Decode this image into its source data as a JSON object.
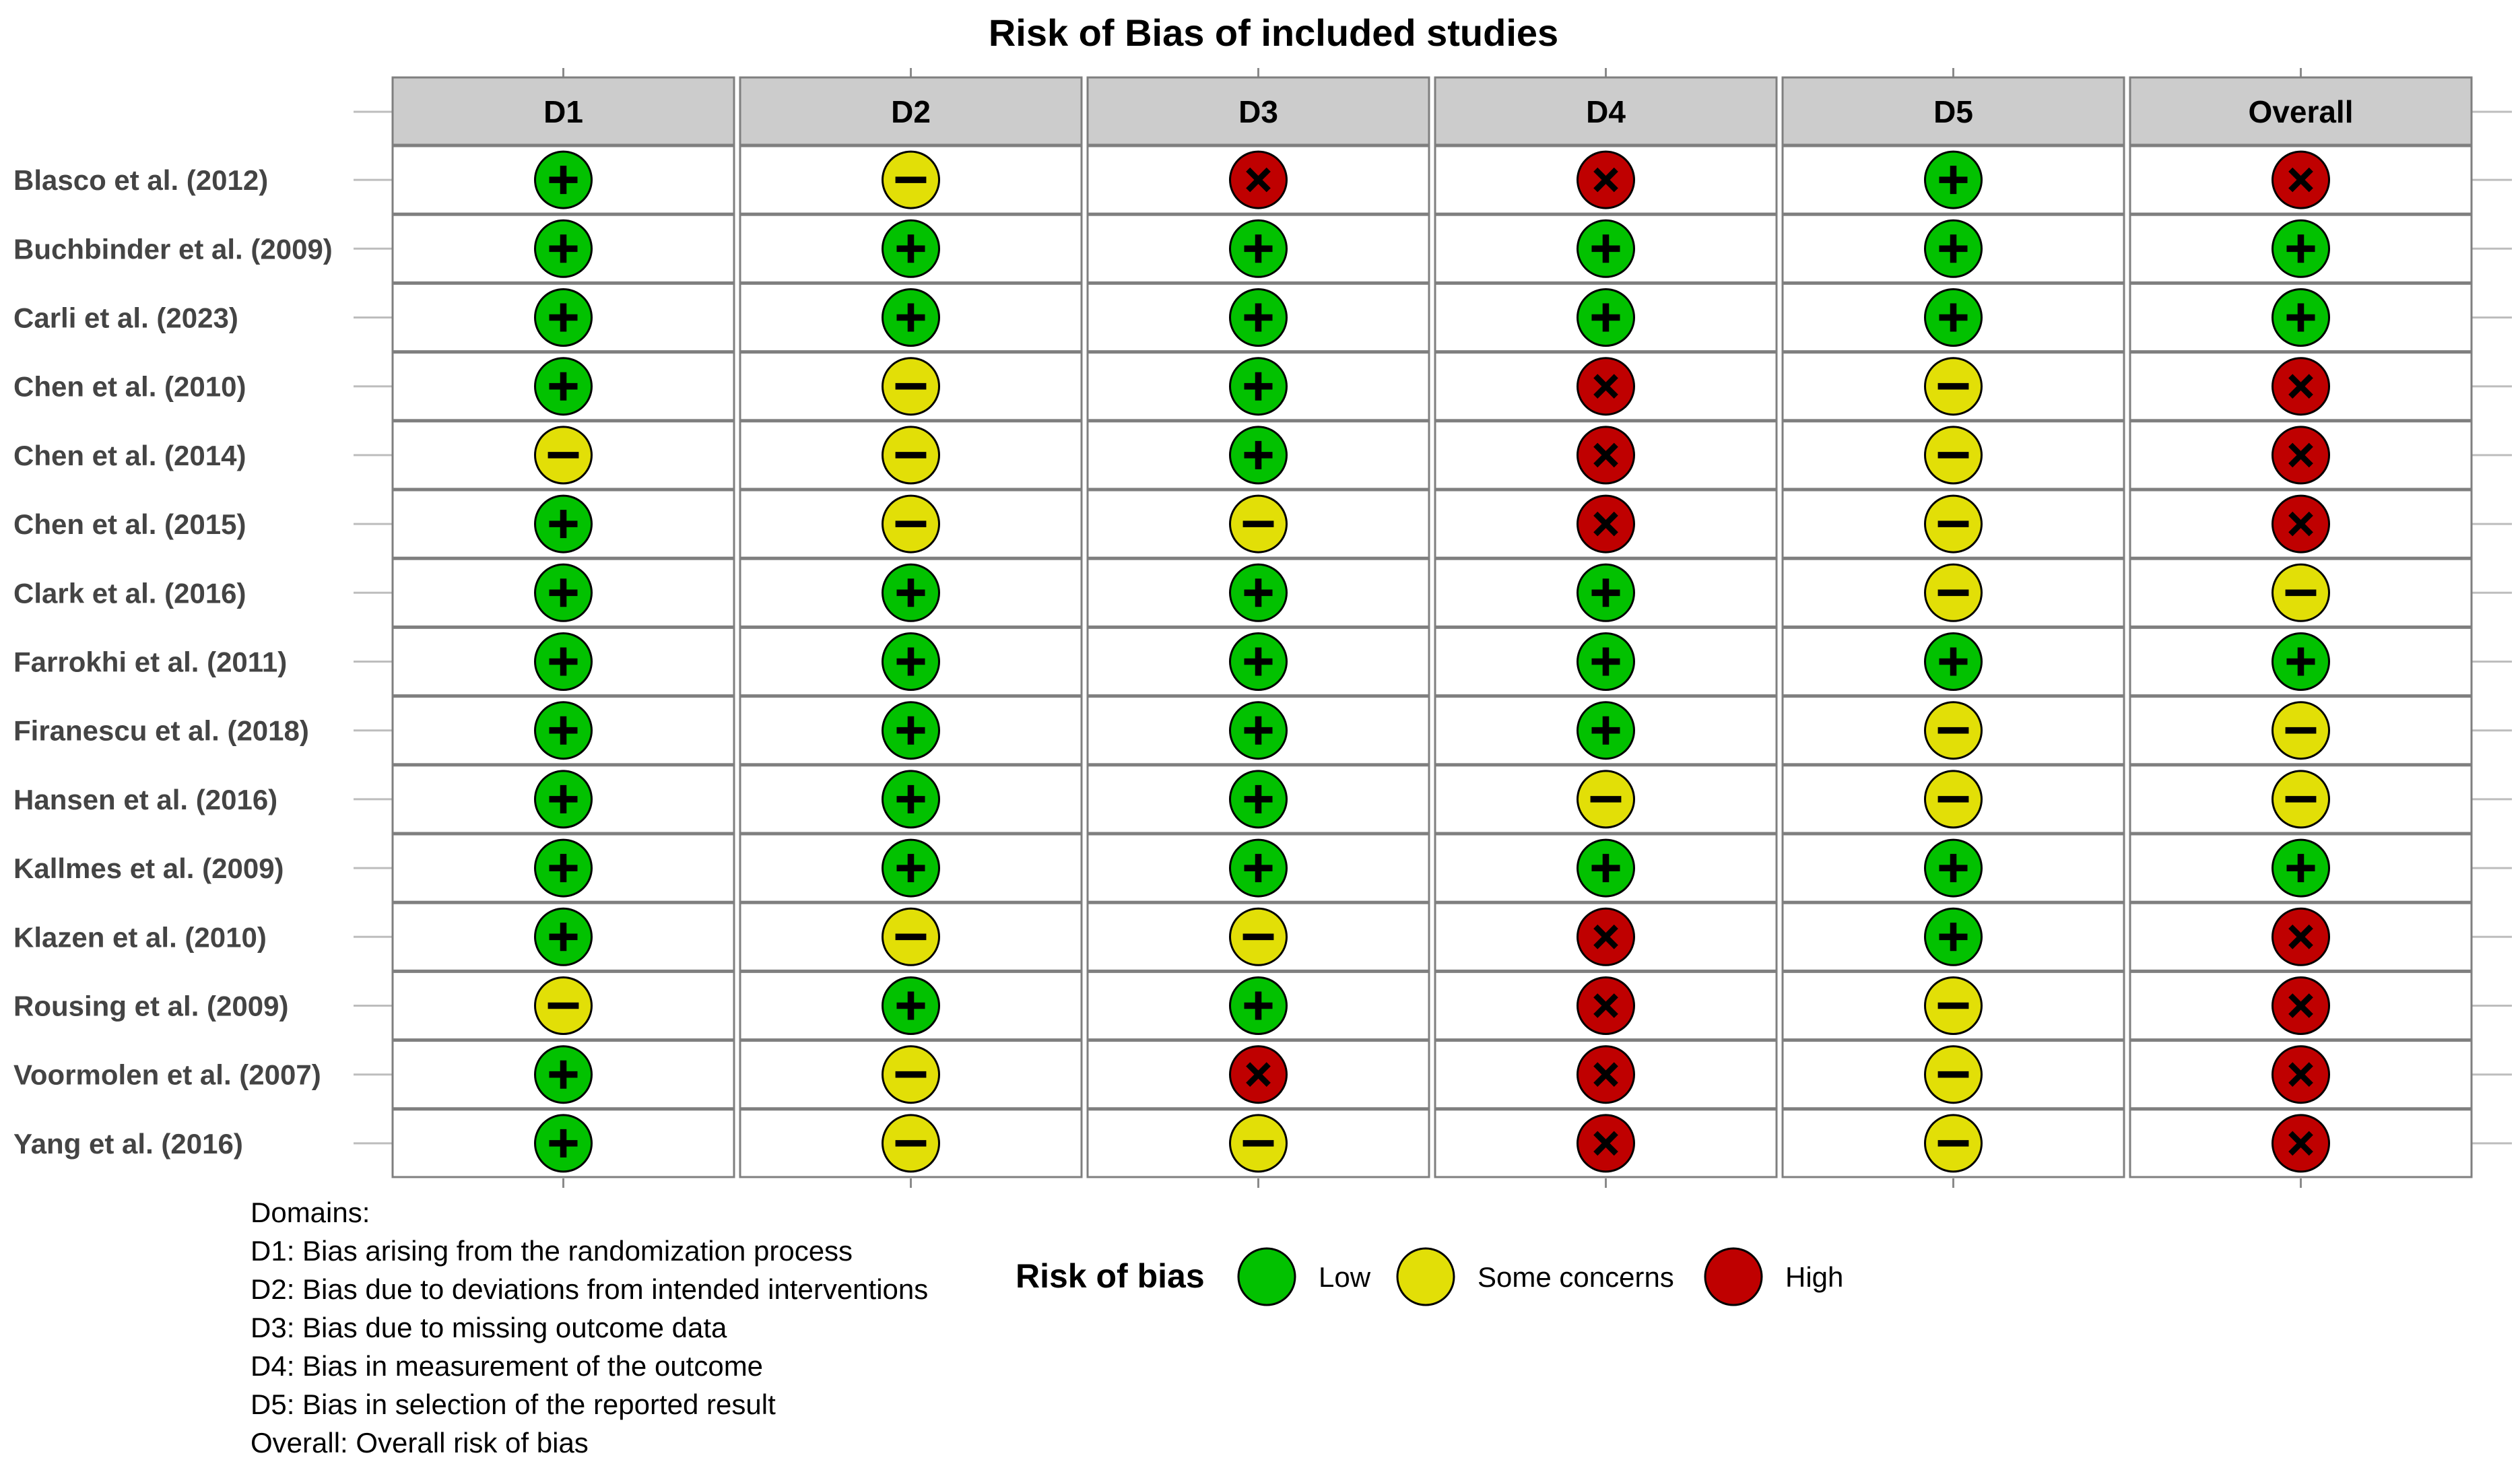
{
  "chart_data": {
    "type": "table",
    "title": "Risk of Bias of included studies",
    "columns": [
      "D1",
      "D2",
      "D3",
      "D4",
      "D5",
      "Overall"
    ],
    "studies": [
      "Blasco et al. (2012)",
      "Buchbinder et al. (2009)",
      "Carli et al. (2023)",
      "Chen et al. (2010)",
      "Chen et al. (2014)",
      "Chen et al. (2015)",
      "Clark et al. (2016)",
      "Farrokhi et al. (2011)",
      "Firanescu et al. (2018)",
      "Hansen et al. (2016)",
      "Kallmes et al. (2009)",
      "Klazen et al. (2010)",
      "Rousing et al. (2009)",
      "Voormolen et al. (2007)",
      "Yang et al. (2016)"
    ],
    "judgements": [
      [
        "low",
        "some",
        "high",
        "high",
        "low",
        "high"
      ],
      [
        "low",
        "low",
        "low",
        "low",
        "low",
        "low"
      ],
      [
        "low",
        "low",
        "low",
        "low",
        "low",
        "low"
      ],
      [
        "low",
        "some",
        "low",
        "high",
        "some",
        "high"
      ],
      [
        "some",
        "some",
        "low",
        "high",
        "some",
        "high"
      ],
      [
        "low",
        "some",
        "some",
        "high",
        "some",
        "high"
      ],
      [
        "low",
        "low",
        "low",
        "low",
        "some",
        "some"
      ],
      [
        "low",
        "low",
        "low",
        "low",
        "low",
        "low"
      ],
      [
        "low",
        "low",
        "low",
        "low",
        "some",
        "some"
      ],
      [
        "low",
        "low",
        "low",
        "some",
        "some",
        "some"
      ],
      [
        "low",
        "low",
        "low",
        "low",
        "low",
        "low"
      ],
      [
        "low",
        "some",
        "some",
        "high",
        "low",
        "high"
      ],
      [
        "some",
        "low",
        "low",
        "high",
        "some",
        "high"
      ],
      [
        "low",
        "some",
        "high",
        "high",
        "some",
        "high"
      ],
      [
        "low",
        "some",
        "some",
        "high",
        "some",
        "high"
      ]
    ],
    "domains_heading": "Domains:",
    "domain_descriptions": [
      "D1: Bias arising from the randomization process",
      "D2: Bias due to deviations from intended interventions",
      "D3: Bias due to missing outcome data",
      "D4: Bias in measurement of the outcome",
      "D5: Bias in selection of the reported result",
      "Overall: Overall risk of bias"
    ],
    "legend": {
      "title": "Risk of bias",
      "items": [
        {
          "key": "low",
          "label": "Low"
        },
        {
          "key": "some",
          "label": "Some concerns"
        },
        {
          "key": "high",
          "label": "High"
        }
      ]
    },
    "colors": {
      "low": "#02C100",
      "some": "#E2DF07",
      "high": "#BF0000",
      "header_fill": "#CCCCCC",
      "cell_border": "#7F7F7F"
    },
    "symbols": {
      "low": "plus-icon",
      "some": "minus-icon",
      "high": "cross-icon"
    }
  }
}
